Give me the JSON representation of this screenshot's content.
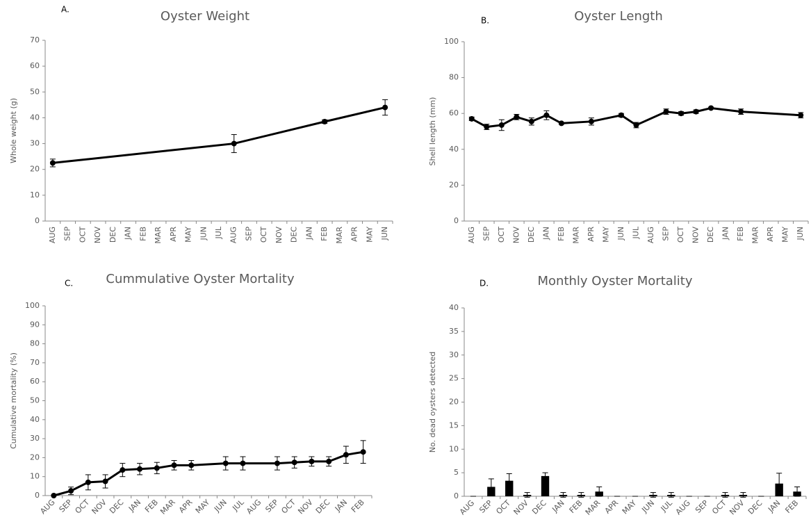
{
  "chart_data": [
    {
      "type": "line",
      "panel_label": "A.",
      "title": "Oyster Weight",
      "ylabel": "Whole weight (g)",
      "categories": [
        "AUG",
        "SEP",
        "OCT",
        "NOV",
        "DEC",
        "JAN",
        "FEB",
        "MAR",
        "APR",
        "MAY",
        "JUN",
        "JUL",
        "AUG",
        "SEP",
        "OCT",
        "NOV",
        "DEC",
        "JAN",
        "FEB",
        "MAR",
        "APR",
        "MAY",
        "JUN"
      ],
      "values": [
        22.5,
        null,
        null,
        null,
        null,
        null,
        null,
        null,
        null,
        null,
        null,
        null,
        30,
        null,
        null,
        null,
        null,
        null,
        38.5,
        null,
        null,
        null,
        44
      ],
      "errors": [
        1.5,
        null,
        null,
        null,
        null,
        null,
        null,
        null,
        null,
        null,
        null,
        null,
        3.5,
        null,
        null,
        null,
        null,
        null,
        0.7,
        null,
        null,
        null,
        3
      ],
      "color": "#000000",
      "connect_gaps": true,
      "ylim": [
        0,
        70
      ],
      "yticks": [
        0,
        10,
        20,
        30,
        40,
        50,
        60,
        70
      ]
    },
    {
      "type": "line",
      "panel_label": "B.",
      "title": "Oyster Length",
      "ylabel": "Shell length (mm)",
      "categories": [
        "AUG",
        "SEP",
        "OCT",
        "NOV",
        "DEC",
        "JAN",
        "FEB",
        "MAR",
        "APR",
        "MAY",
        "JUN",
        "JUL",
        "AUG",
        "SEP",
        "OCT",
        "NOV",
        "DEC",
        "JAN",
        "FEB",
        "MAR",
        "APR",
        "MAY",
        "JUN"
      ],
      "values": [
        57,
        52.5,
        53.5,
        58,
        55.5,
        59,
        54.5,
        null,
        55.5,
        null,
        59,
        53.5,
        null,
        61,
        60,
        61,
        63,
        null,
        61,
        null,
        null,
        null,
        59
      ],
      "errors": [
        1,
        1.5,
        3,
        1.5,
        2,
        2.5,
        0.5,
        null,
        2,
        null,
        1,
        1.5,
        null,
        1.5,
        1,
        1,
        0.5,
        null,
        1.5,
        null,
        null,
        null,
        1.5
      ],
      "color": "#000000",
      "connect_gaps": true,
      "ylim": [
        0,
        100
      ],
      "yticks": [
        0,
        20,
        40,
        60,
        80,
        100
      ]
    },
    {
      "type": "line",
      "panel_label": "C.",
      "title": "Cummulative Oyster Mortality",
      "ylabel": "Cumulative mortality (%)",
      "categories": [
        "AUG",
        "SEP",
        "OCT",
        "NOV",
        "DEC",
        "JAN",
        "FEB",
        "MAR",
        "APR",
        "MAY",
        "JUN",
        "JUL",
        "AUG",
        "SEP",
        "OCT",
        "NOV",
        "DEC",
        "JAN",
        "FEB"
      ],
      "values": [
        0,
        2.5,
        7,
        7.5,
        13.5,
        14,
        14.5,
        16,
        16,
        null,
        17,
        17,
        null,
        17,
        17.5,
        18,
        18,
        21.5,
        23
      ],
      "errors": [
        0,
        2,
        4,
        3.5,
        3.5,
        3,
        3,
        2.5,
        2.5,
        null,
        3.5,
        3.5,
        null,
        3.5,
        3,
        2.5,
        2.5,
        4.5,
        6
      ],
      "color": "#000000",
      "connect_gaps": true,
      "ylim": [
        0,
        100
      ],
      "yticks": [
        0,
        10,
        20,
        30,
        40,
        50,
        60,
        70,
        80,
        90,
        100
      ]
    },
    {
      "type": "bar",
      "panel_label": "D.",
      "title": "Monthly Oyster Mortality",
      "ylabel": "No. dead oysters detected",
      "categories": [
        "AUG",
        "SEP",
        "OCT",
        "NOV",
        "DEC",
        "JAN",
        "FEB",
        "MAR",
        "APR",
        "MAY",
        "JUN",
        "JUL",
        "AUG",
        "SEP",
        "OCT",
        "NOV",
        "DEC",
        "JAN",
        "FEB"
      ],
      "values": [
        0,
        2,
        3.3,
        0.3,
        4.3,
        0.3,
        0.3,
        1,
        0,
        0,
        0.3,
        0.3,
        0,
        0,
        0.3,
        0.3,
        0,
        2.7,
        1
      ],
      "errors": [
        0,
        1.7,
        1.5,
        0.5,
        0.7,
        0.5,
        0.5,
        1,
        0,
        0,
        0.5,
        0.5,
        0,
        0,
        0.5,
        0.5,
        0,
        2.2,
        1
      ],
      "color": "#000000",
      "ylim": [
        0,
        40
      ],
      "yticks": [
        0,
        5,
        10,
        15,
        20,
        25,
        30,
        35,
        40
      ]
    }
  ]
}
